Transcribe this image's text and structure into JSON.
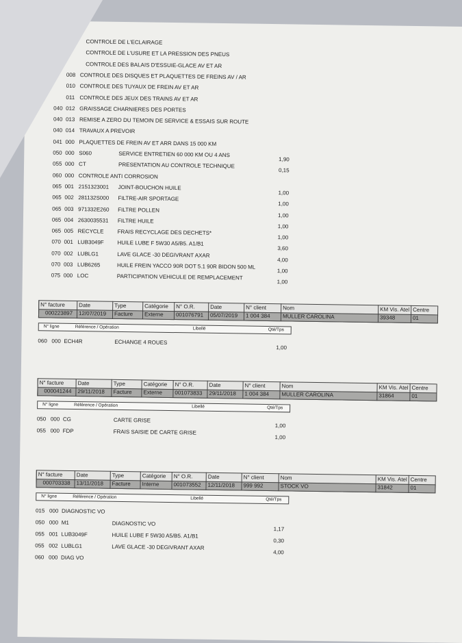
{
  "list": [
    {
      "label": "CONTROLE DE L'ECLAIRAGE"
    },
    {
      "label": "CONTROLE DE L'USURE ET LA PRESSION DES PNEUS"
    },
    {
      "label": "CONTROLE DES BALAIS D'ESSUIE-GLACE AV ET AR"
    },
    {
      "s": "008",
      "label": "CONTROLE DES DISQUES ET PLAQUETTES DE FREINS AV / AR"
    },
    {
      "s": "010",
      "label": "CONTROLE DES TUYAUX DE FREIN AV ET AR"
    },
    {
      "s": "011",
      "label": "CONTROLE DES JEUX DES TRAINS AV ET AR"
    },
    {
      "n": "040",
      "s": "012",
      "label": "GRAISSAGE CHARNIERES DES PORTES"
    },
    {
      "n": "040",
      "s": "013",
      "label": "REMISE A ZERO DU TEMOIN DE SERVICE & ESSAIS SUR ROUTE"
    },
    {
      "n": "040",
      "s": "014",
      "label": "TRAVAUX A PREVOIR"
    },
    {
      "n": "041",
      "s": "000",
      "label": "PLAQUETTES DE FREIN AV ET ARR DANS 15 000 KM"
    },
    {
      "n": "050",
      "s": "000",
      "ref": "S060",
      "label": "SERVICE ENTRETIEN 60 000 KM OU 4 ANS",
      "qty": "1,90"
    },
    {
      "n": "055",
      "s": "000",
      "ref": "CT",
      "label": "PRESENTATION AU CONTROLE TECHNIQUE",
      "qty": "0,15"
    },
    {
      "n": "060",
      "s": "000",
      "label": "CONTROLE ANTI CORROSION"
    },
    {
      "n": "065",
      "s": "001",
      "ref": "2151323001",
      "label": "JOINT-BOUCHON HUILE",
      "qty": "1,00"
    },
    {
      "n": "065",
      "s": "002",
      "ref": "281132S000",
      "label": "FILTRE-AIR SPORTAGE",
      "qty": "1,00"
    },
    {
      "n": "065",
      "s": "003",
      "ref": "971332E260",
      "label": "FILTRE POLLEN",
      "qty": "1,00"
    },
    {
      "n": "065",
      "s": "004",
      "ref": "2630035531",
      "label": "FILTRE HUILE",
      "qty": "1,00"
    },
    {
      "n": "065",
      "s": "005",
      "ref": "RECYCLE",
      "label": "FRAIS RECYCLAGE DES DECHETS*",
      "qty": "1,00"
    },
    {
      "n": "070",
      "s": "001",
      "ref": "LUB3049F",
      "label": "HUILE LUBE F 5W30 A5/B5. A1/B1",
      "qty": "3,60"
    },
    {
      "n": "070",
      "s": "002",
      "ref": "LUBLG1",
      "label": "LAVE GLACE -30 DEGIVRANT AXAR",
      "qty": "4,00"
    },
    {
      "n": "070",
      "s": "003",
      "ref": "LUB6265",
      "label": "HUILE FREIN YACCO 90R DOT 5.1 90R BIDON 500 ML",
      "qty": "1,00"
    },
    {
      "n": "075",
      "s": "000",
      "ref": "LOC",
      "label": "PARTICIPATION VEHICULE DE REMPLACEMENT",
      "qty": "1,00"
    }
  ],
  "header_labels": [
    "N° facture",
    "Date",
    "Type",
    "Catégorie",
    "N° O.R.",
    "Date",
    "N° client",
    "Nom",
    "KM Vis. Atel",
    "Centre"
  ],
  "item_labels": [
    "N° ligne",
    "Référence / Opération",
    "Libellé",
    "Qté/Tps"
  ],
  "invoices": [
    {
      "header": [
        "000223897",
        "12/07/2019",
        "Facture",
        "Externe",
        "001076791",
        "05/07/2019",
        "1 004 384",
        "MULLER CAROLINA",
        "39348",
        "01"
      ],
      "items": [
        {
          "n": "060",
          "s": "000",
          "ref": "ECH4R",
          "label": "ECHANGE 4 ROUES",
          "qty": "1,00"
        }
      ]
    },
    {
      "header": [
        "000041244",
        "29/11/2018",
        "Facture",
        "Externe",
        "001073833",
        "29/11/2018",
        "1 004 384",
        "MULLER CAROLINA",
        "31864",
        "01"
      ],
      "items": [
        {
          "n": "050",
          "s": "000",
          "ref": "CG",
          "label": "CARTE GRISE",
          "qty": "1,00"
        },
        {
          "n": "055",
          "s": "000",
          "ref": "FDP",
          "label": "FRAIS SAISIE DE CARTE GRISE",
          "qty": "1,00"
        }
      ]
    },
    {
      "header": [
        "000703338",
        "13/11/2018",
        "Facture",
        "Interne",
        "001073552",
        "12/11/2018",
        "999 992",
        "STOCK VO",
        "31842",
        "01"
      ],
      "items": [
        {
          "n": "015",
          "s": "000",
          "label": "DIAGNOSTIC VO"
        },
        {
          "n": "050",
          "s": "000",
          "ref": "M1",
          "label": "DIAGNOSTIC VO",
          "qty": "1,17"
        },
        {
          "n": "055",
          "s": "001",
          "ref": "LUB3049F",
          "label": "HUILE LUBE F 5W30 A5/B5. A1/B1",
          "qty": "0,30"
        },
        {
          "n": "055",
          "s": "002",
          "ref": "LUBLG1",
          "label": "LAVE GLACE -30 DEGIVRANT AXAR",
          "qty": "4,00"
        },
        {
          "n": "060",
          "s": "000",
          "ref": "DIAG VO",
          "label": ""
        }
      ]
    }
  ]
}
